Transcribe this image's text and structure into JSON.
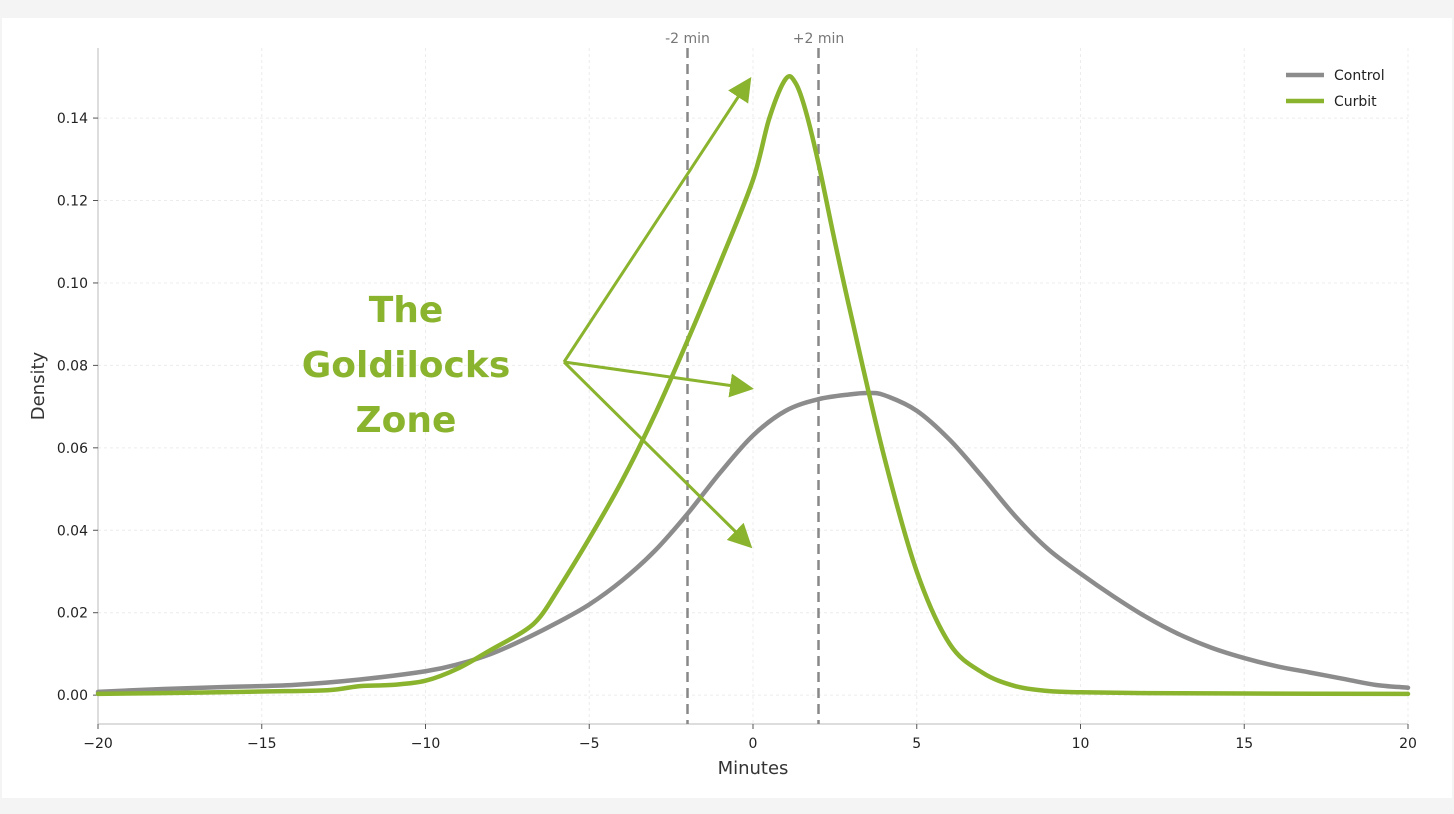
{
  "chart_data": {
    "type": "line",
    "xlabel": "Minutes",
    "ylabel": "Density",
    "xlim": [
      -20,
      20
    ],
    "ylim": [
      -0.007,
      0.157
    ],
    "xticks": [
      -20,
      -15,
      -10,
      -5,
      0,
      5,
      10,
      15,
      20
    ],
    "xtick_labels": [
      "−20",
      "−15",
      "−10",
      "−5",
      "0",
      "5",
      "10",
      "15",
      "20"
    ],
    "yticks": [
      0.0,
      0.02,
      0.04,
      0.06,
      0.08,
      0.1,
      0.12,
      0.14
    ],
    "ytick_labels": [
      "0.00",
      "0.02",
      "0.04",
      "0.06",
      "0.08",
      "0.10",
      "0.12",
      "0.14"
    ],
    "grid": true,
    "legend_position": "top-right",
    "series": [
      {
        "name": "Control",
        "color": "#8c8c8c",
        "x": [
          -20,
          -18,
          -16,
          -14,
          -12,
          -10,
          -9,
          -8,
          -7,
          -6,
          -5,
          -4,
          -3,
          -2,
          -1,
          0,
          1,
          2,
          3,
          3.5,
          4,
          5,
          6,
          7,
          8,
          9,
          10,
          11,
          12,
          13,
          14,
          15,
          16,
          17,
          18,
          19,
          20
        ],
        "y": [
          0.0008,
          0.0015,
          0.002,
          0.0025,
          0.0038,
          0.0058,
          0.0075,
          0.01,
          0.0135,
          0.0175,
          0.022,
          0.0278,
          0.035,
          0.044,
          0.054,
          0.063,
          0.069,
          0.0718,
          0.073,
          0.0733,
          0.0728,
          0.069,
          0.062,
          0.053,
          0.0435,
          0.0355,
          0.0295,
          0.024,
          0.019,
          0.0148,
          0.0115,
          0.009,
          0.007,
          0.0055,
          0.004,
          0.0025,
          0.0018
        ]
      },
      {
        "name": "Curbit",
        "color": "#8ab32e",
        "x": [
          -20,
          -17,
          -15,
          -13,
          -12,
          -11,
          -10,
          -9,
          -8,
          -7,
          -6.5,
          -6,
          -5,
          -4,
          -3,
          -2,
          -1,
          0,
          0.5,
          1,
          1.3,
          1.6,
          2,
          2.5,
          3,
          4,
          5,
          6,
          7,
          8,
          9,
          10,
          12,
          15,
          20
        ],
        "y": [
          0.0003,
          0.0006,
          0.0009,
          0.0012,
          0.0022,
          0.0025,
          0.0035,
          0.0065,
          0.011,
          0.0155,
          0.019,
          0.025,
          0.038,
          0.052,
          0.068,
          0.086,
          0.105,
          0.125,
          0.14,
          0.1495,
          0.1485,
          0.142,
          0.129,
          0.11,
          0.092,
          0.058,
          0.03,
          0.0125,
          0.0055,
          0.0022,
          0.001,
          0.0007,
          0.0005,
          0.0004,
          0.0003
        ]
      }
    ],
    "reference_lines": [
      {
        "x": -2,
        "label": "-2 min",
        "color": "#888888"
      },
      {
        "x": 2,
        "label": "+2 min",
        "color": "#888888"
      }
    ],
    "annotations": [
      {
        "lines": [
          "The",
          "Goldilocks",
          "Zone"
        ],
        "color": "#8ab32e"
      }
    ]
  }
}
